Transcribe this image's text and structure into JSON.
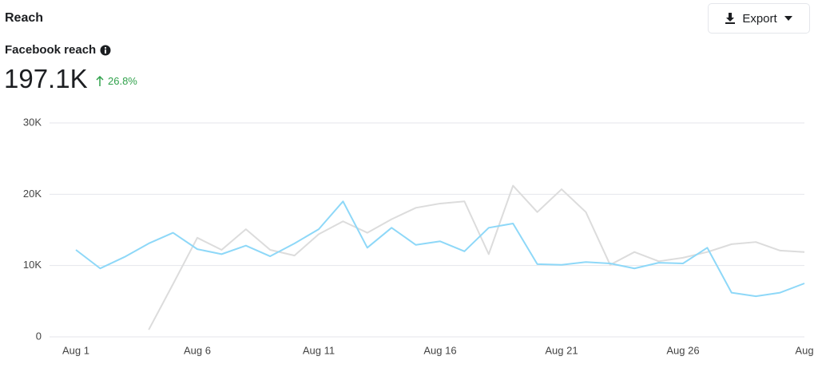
{
  "header": {
    "title": "Reach",
    "export": "Export",
    "metric": "Facebook reach",
    "total": "197.1K",
    "change": "26.8%"
  },
  "chart_data": {
    "type": "line",
    "categories": [
      "Aug 1",
      null,
      null,
      null,
      null,
      "Aug 6",
      null,
      null,
      null,
      null,
      "Aug 11",
      null,
      null,
      null,
      null,
      "Aug 16",
      null,
      null,
      null,
      null,
      "Aug 21",
      null,
      null,
      null,
      null,
      "Aug 26",
      null,
      null,
      null,
      null,
      "Aug"
    ],
    "series": [
      {
        "color": "#dcdcdc",
        "values": [
          null,
          null,
          null,
          1000,
          7400,
          13900,
          12200,
          15100,
          12200,
          11400,
          14400,
          16200,
          14600,
          16500,
          18100,
          18700,
          19000,
          11600,
          21200,
          17500,
          20700,
          17500,
          10100,
          11900,
          10600,
          11100,
          11900,
          13000,
          13300,
          12100,
          11900
        ]
      },
      {
        "color": "#8ed8f8",
        "values": [
          12200,
          9600,
          11200,
          13100,
          14600,
          12300,
          11600,
          12800,
          11300,
          13100,
          15100,
          19000,
          12500,
          15300,
          12900,
          13400,
          12000,
          15300,
          15900,
          10200,
          10100,
          10500,
          10300,
          9600,
          10400,
          10300,
          12500,
          6200,
          5700,
          6200,
          7500
        ]
      }
    ],
    "ylim": [
      0,
      30000
    ],
    "yticks": [
      0,
      {
        "value": 10000,
        "label": "10K"
      },
      {
        "value": 20000,
        "label": "20K"
      },
      {
        "value": 30000,
        "label": "30K"
      }
    ],
    "grid": true
  }
}
